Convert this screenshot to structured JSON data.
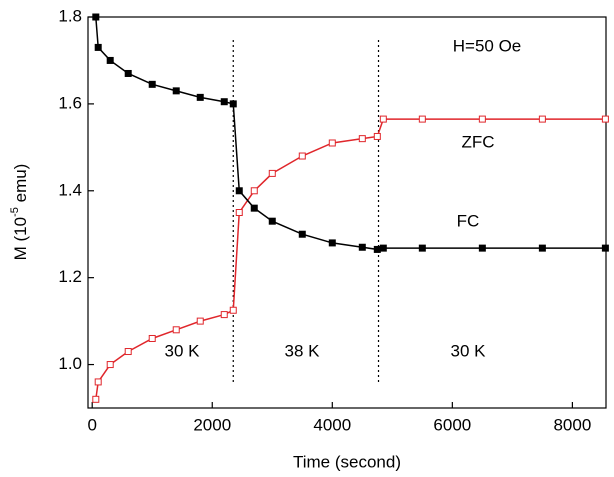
{
  "chart_data": {
    "type": "line",
    "x_label": "Time (second)",
    "y_label": [
      "M (10",
      "-5",
      " emu)"
    ],
    "xlim": [
      -70,
      8560
    ],
    "ylim": [
      0.9,
      1.8
    ],
    "xticks": [
      0,
      2000,
      4000,
      6000,
      8000
    ],
    "yticks": [
      {
        "value": 1,
        "label": "1.0"
      },
      1.2,
      1.4,
      1.6,
      1.8
    ],
    "x": [
      60,
      100,
      300,
      600,
      1000,
      1400,
      1800,
      2200,
      2350,
      2450,
      2700,
      3000,
      3500,
      4000,
      4500,
      4750,
      4850,
      5500,
      6500,
      7500,
      8550
    ],
    "series": [
      {
        "name": "ZFC",
        "color": "#e0262b",
        "marker": "open-square",
        "values": [
          0.92,
          0.96,
          1.0,
          1.03,
          1.06,
          1.08,
          1.1,
          1.115,
          1.125,
          1.35,
          1.4,
          1.44,
          1.48,
          1.51,
          1.52,
          1.525,
          1.565,
          1.565,
          1.565,
          1.565,
          1.565
        ]
      },
      {
        "name": "FC",
        "color": "#000000",
        "marker": "filled-square",
        "values": [
          1.8,
          1.73,
          1.7,
          1.67,
          1.645,
          1.63,
          1.615,
          1.605,
          1.6,
          1.4,
          1.36,
          1.33,
          1.3,
          1.28,
          1.27,
          1.265,
          1.268,
          1.268,
          1.268,
          1.268,
          1.268
        ]
      }
    ],
    "dividers": [
      2350,
      4770
    ],
    "annotations": [
      "H=50 Oe",
      "30 K",
      "38 K",
      "30 K"
    ]
  }
}
